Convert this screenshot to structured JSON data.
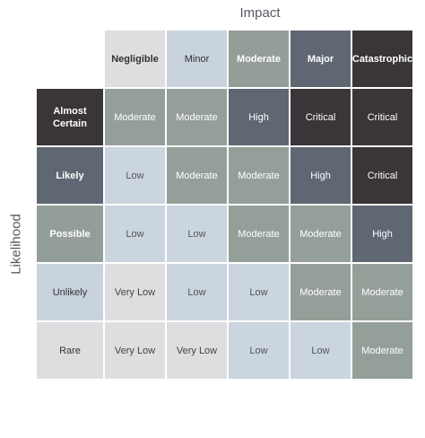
{
  "x_axis_title": "Impact",
  "y_axis_title": "Likelihood",
  "columns": [
    {
      "label": "Negligible",
      "bg": "#dfdde0",
      "fg": "#333333",
      "bold": true
    },
    {
      "label": "Minor",
      "bg": "#c8d3de",
      "fg": "#333333",
      "bold": false
    },
    {
      "label": "Moderate",
      "bg": "#949e98",
      "fg": "#ffffff",
      "bold": true
    },
    {
      "label": "Major",
      "bg": "#5f6772",
      "fg": "#ffffff",
      "bold": true
    },
    {
      "label": "Catastrophic",
      "bg": "#3a3538",
      "fg": "#ffffff",
      "bold": true
    }
  ],
  "rows": [
    {
      "label": "Almost Certain",
      "bg": "#3a3538",
      "fg": "#ffffff"
    },
    {
      "label": "Likely",
      "bg": "#5f6772",
      "fg": "#ffffff"
    },
    {
      "label": "Possible",
      "bg": "#949e98",
      "fg": "#ffffff"
    },
    {
      "label": "Unlikely",
      "bg": "#c8d3de",
      "fg": "#333333"
    },
    {
      "label": "Rare",
      "bg": "#dfdde0",
      "fg": "#333333"
    }
  ],
  "levels": {
    "Very Low": {
      "bg": "#dfdde0",
      "fg": "#444444"
    },
    "Low": {
      "bg": "#cad5df",
      "fg": "#555555"
    },
    "Moderate": {
      "bg": "#959f99",
      "fg": "#ffffff"
    },
    "High": {
      "bg": "#5f6772",
      "fg": "#ffffff"
    },
    "Critical": {
      "bg": "#3a3538",
      "fg": "#ffffff"
    }
  },
  "cells": [
    [
      "Moderate",
      "Moderate",
      "High",
      "Critical",
      "Critical"
    ],
    [
      "Low",
      "Moderate",
      "Moderate",
      "High",
      "Critical"
    ],
    [
      "Low",
      "Low",
      "Moderate",
      "Moderate",
      "High"
    ],
    [
      "Very Low",
      "Low",
      "Low",
      "Moderate",
      "Moderate"
    ],
    [
      "Very Low",
      "Very Low",
      "Low",
      "Low",
      "Moderate"
    ]
  ]
}
